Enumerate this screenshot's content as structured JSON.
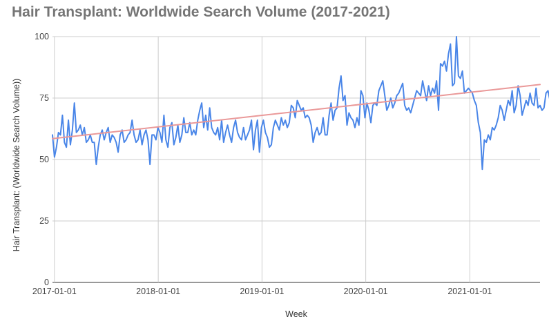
{
  "chart_data": {
    "type": "line",
    "title": "Hair Transplant: Worldwide Search Volume (2017-2021)",
    "xlabel": "Week",
    "ylabel": "Hair Transplant: (Worldwide Search Volume))",
    "x_start": "2016-12-25",
    "x_end": "2021-09-05",
    "ylim": [
      0,
      100
    ],
    "yticks": [
      0,
      25,
      50,
      75,
      100
    ],
    "xticks": [
      "2017-01-01",
      "2018-01-01",
      "2019-01-01",
      "2020-01-01",
      "2021-01-01"
    ],
    "grid": true,
    "legend": "none",
    "series": [
      {
        "color": "#4a86e8",
        "interval_days": 7,
        "values": [
          60,
          51,
          55,
          61,
          60,
          68,
          57,
          55,
          66,
          56,
          62,
          73,
          61,
          62,
          64,
          60,
          63,
          57,
          58,
          60,
          57,
          57,
          48,
          55,
          60,
          62,
          58,
          61,
          63,
          57,
          60,
          59,
          57,
          53,
          60,
          62,
          57,
          58,
          60,
          61,
          66,
          60,
          57,
          58,
          62,
          56,
          60,
          62,
          58,
          48,
          60,
          60,
          58,
          63,
          61,
          57,
          68,
          58,
          55,
          63,
          65,
          56,
          59,
          64,
          57,
          60,
          67,
          61,
          61,
          65,
          60,
          62,
          60,
          66,
          70,
          73,
          63,
          68,
          62,
          71,
          63,
          61,
          60,
          63,
          58,
          66,
          57,
          61,
          64,
          60,
          57,
          63,
          66,
          61,
          59,
          58,
          63,
          58,
          60,
          62,
          66,
          54,
          62,
          66,
          53,
          63,
          66,
          61,
          59,
          55,
          56,
          63,
          66,
          64,
          62,
          67,
          64,
          66,
          63,
          65,
          72,
          71,
          67,
          74,
          72,
          70,
          71,
          67,
          68,
          67,
          64,
          57,
          61,
          63,
          60,
          61,
          67,
          60,
          60,
          68,
          73,
          66,
          70,
          71,
          79,
          84,
          74,
          76,
          64,
          69,
          67,
          66,
          63,
          67,
          64,
          78,
          76,
          67,
          73,
          70,
          65,
          72,
          73,
          72,
          78,
          80,
          82,
          76,
          70,
          72,
          75,
          71,
          73,
          76,
          77,
          79,
          81,
          72,
          70,
          71,
          69,
          72,
          75,
          78,
          77,
          76,
          82,
          78,
          74,
          80,
          76,
          79,
          77,
          82,
          70,
          89,
          88,
          90,
          86,
          93,
          97,
          80,
          81,
          100,
          84,
          83,
          86,
          77,
          78,
          79,
          78,
          77,
          74,
          72,
          65,
          61,
          46,
          58,
          57,
          60,
          58,
          63,
          62,
          64,
          67,
          72,
          70,
          66,
          70,
          74,
          72,
          78,
          69,
          72,
          80,
          76,
          68,
          71,
          74,
          72,
          77,
          73,
          72,
          79,
          71,
          72,
          70,
          71,
          77,
          78,
          74,
          69,
          78,
          74,
          80,
          76,
          72,
          74,
          78,
          72,
          77,
          74,
          72,
          73,
          77,
          75,
          76,
          74,
          74,
          75,
          72,
          68,
          73,
          70,
          76,
          73,
          71,
          70,
          75,
          77,
          74,
          75,
          78,
          74,
          80,
          78,
          74,
          77,
          73,
          77,
          79,
          76,
          72,
          78,
          80,
          82,
          76,
          74,
          71,
          79,
          82,
          78,
          80,
          81,
          77,
          72,
          75,
          80,
          76,
          76,
          74,
          77,
          83,
          76,
          73,
          75,
          76,
          80,
          79,
          80,
          79,
          84,
          80,
          77,
          76,
          85,
          80,
          83,
          86
        ]
      },
      {
        "color": "#ea9999",
        "type": "trendline",
        "values": [
          58.5,
          80.5
        ]
      }
    ]
  }
}
